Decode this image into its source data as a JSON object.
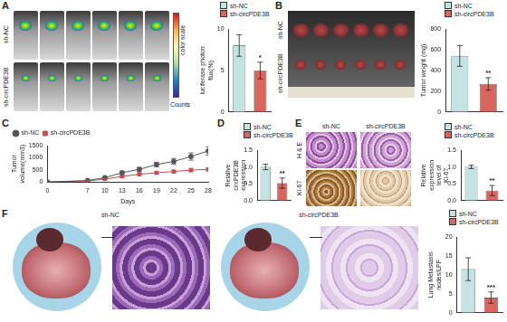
{
  "chart_data": [
    {
      "panel": "A",
      "type": "bar",
      "categories": [
        "sh-NC",
        "sh-circPDE3B"
      ],
      "values": [
        8,
        5
      ],
      "errors": [
        1.3,
        1
      ],
      "colors": [
        "#c5e3e3",
        "#d8665e"
      ],
      "ylabel": "luciferase photon flux(%)",
      "ylim": [
        0,
        10
      ],
      "yticks": [
        0,
        5,
        10
      ],
      "grid": false,
      "legend": "top",
      "tick_labels": "y",
      "annotations": [
        {
          "text": "*",
          "category": "sh-circPDE3B"
        }
      ]
    },
    {
      "panel": "B",
      "type": "bar",
      "categories": [
        "sh-NC",
        "sh-circPDE3B"
      ],
      "values": [
        540,
        270
      ],
      "errors": [
        100,
        60
      ],
      "colors": [
        "#c5e3e3",
        "#d8665e"
      ],
      "ylabel": "Tumor weight (mg)",
      "ylim": [
        0,
        800
      ],
      "yticks": [
        0,
        200,
        400,
        600,
        800
      ],
      "grid": false,
      "legend": "top",
      "tick_labels": "y",
      "annotations": [
        {
          "text": "**",
          "category": "sh-circPDE3B"
        }
      ]
    },
    {
      "panel": "C",
      "type": "line",
      "x": [
        0,
        7,
        10,
        13,
        16,
        19,
        22,
        25,
        28
      ],
      "series": [
        {
          "name": "sh-NC",
          "color": "#555555",
          "marker": "circle",
          "values": [
            0,
            60,
            180,
            380,
            520,
            720,
            850,
            1050,
            1280
          ],
          "errors": [
            0,
            20,
            40,
            70,
            80,
            90,
            120,
            150,
            170
          ]
        },
        {
          "name": "sh-circPDE3B",
          "color": "#c0504d",
          "marker": "square",
          "values": [
            0,
            40,
            120,
            230,
            320,
            380,
            430,
            490,
            520
          ],
          "errors": [
            0,
            15,
            30,
            40,
            50,
            50,
            60,
            70,
            60
          ]
        }
      ],
      "xlabel": "Days",
      "ylabel": "Tumor volume(mm3)",
      "xlim": [
        0,
        28
      ],
      "xticks": [
        0,
        7,
        10,
        13,
        16,
        19,
        22,
        25,
        28
      ],
      "ylim": [
        0,
        1500
      ],
      "yticks": [
        0,
        500,
        1000,
        1500
      ],
      "grid": false,
      "legend": "top-left"
    },
    {
      "panel": "D",
      "type": "bar",
      "categories": [
        "sh-NC",
        "sh-circPDE3B"
      ],
      "values": [
        1.0,
        0.52
      ],
      "errors": [
        0.08,
        0.15
      ],
      "colors": [
        "#c5e3e3",
        "#d8665e"
      ],
      "ylabel": "Relative circPDE3B expression",
      "ylim": [
        0,
        1.5
      ],
      "yticks": [
        {
          "value": 0,
          "label": "0.0"
        },
        0.5,
        {
          "value": 1,
          "label": "1.0"
        },
        1.5
      ],
      "grid": false,
      "legend": "top",
      "tick_labels": "y",
      "annotations": [
        {
          "text": "**",
          "category": "sh-circPDE3B"
        }
      ]
    },
    {
      "panel": "E",
      "type": "bar",
      "categories": [
        "sh-NC",
        "sh-circPDE3B"
      ],
      "values": [
        1.0,
        0.3
      ],
      "errors": [
        0.05,
        0.15
      ],
      "colors": [
        "#c5e3e3",
        "#d8665e"
      ],
      "ylabel": "Relative expression level of Ki-67",
      "ylim": [
        0,
        1.5
      ],
      "yticks": [
        {
          "value": 0,
          "label": "0.0"
        },
        0.5,
        {
          "value": 1,
          "label": "1.0"
        },
        1.5
      ],
      "grid": false,
      "legend": "top",
      "tick_labels": "y",
      "annotations": [
        {
          "text": "**",
          "category": "sh-circPDE3B"
        }
      ]
    },
    {
      "panel": "F",
      "type": "bar",
      "categories": [
        "sh-NC",
        "sh-circPDE3B"
      ],
      "values": [
        11.5,
        4
      ],
      "errors": [
        3,
        1.5
      ],
      "colors": [
        "#c5e3e3",
        "#d8665e"
      ],
      "ylabel": "Lung Metastasis nodes/LPF",
      "ylim": [
        0,
        20
      ],
      "yticks": [
        0,
        5,
        10,
        15,
        20
      ],
      "grid": false,
      "legend": "top",
      "tick_labels": "y",
      "annotations": [
        {
          "text": "***",
          "category": "sh-circPDE3B"
        }
      ]
    }
  ],
  "images": {
    "A": {
      "rows": [
        "sh-NC",
        "sh-circPDE3B"
      ],
      "scale_title": "color scale",
      "scale_unit": "Counts"
    },
    "B": {
      "rows": [
        "sh-NC",
        "sh-circPDE3B"
      ]
    },
    "E": {
      "columns": [
        "sh-NC",
        "sh-circPDE3B"
      ],
      "rows": [
        "H & E",
        "Ki-67"
      ]
    },
    "F": {
      "columns": [
        "sh-NC",
        "sh-circPDE3B"
      ]
    }
  }
}
